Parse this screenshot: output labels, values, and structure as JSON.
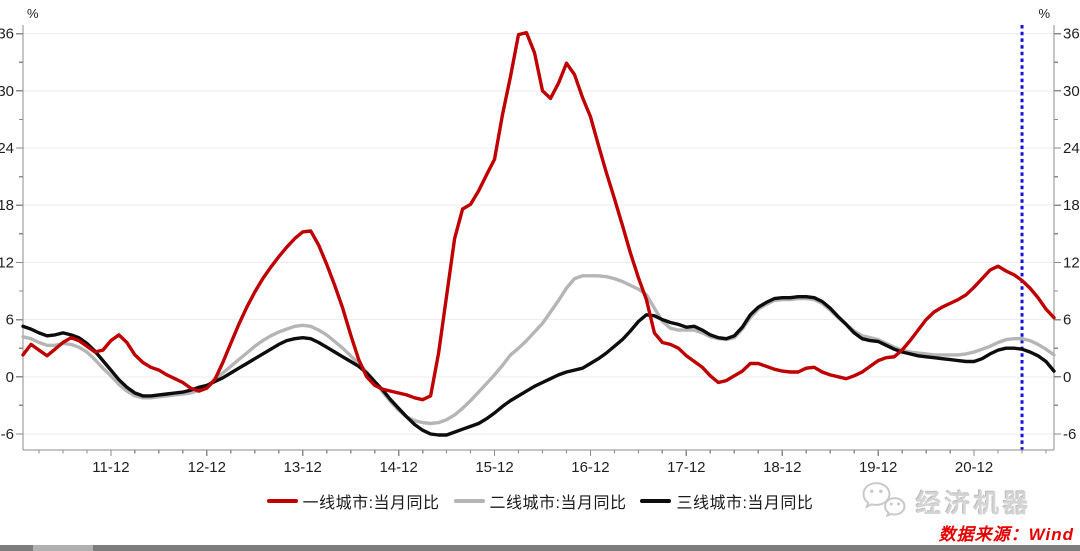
{
  "footer": {
    "brand": "经济机器",
    "source": "数据来源：Wind"
  },
  "scrollbar": {
    "present": true
  },
  "chart_data": {
    "type": "line",
    "title": "",
    "unit_label": "%",
    "grid": "horizontal-light",
    "legend_position": "bottom-center",
    "colors": {
      "axis": "#8c8c8c",
      "grid": "#ededed",
      "tick_text": "#1f1f1f",
      "reference": "#1414dc"
    },
    "y_axis": {
      "min": -6,
      "max": 36,
      "tick_step": 6,
      "minor_step": 3,
      "ticks": [
        36,
        30,
        24,
        18,
        12,
        6,
        0,
        -6
      ],
      "mirrored_right": true
    },
    "x_axis": {
      "start_month": "2011-01",
      "freq": "monthly",
      "n_points": 130,
      "tick_labels": [
        "11-12",
        "12-12",
        "13-12",
        "14-12",
        "15-12",
        "16-12",
        "17-12",
        "18-12",
        "19-12",
        "20-12"
      ],
      "tick_month_indices": [
        11,
        23,
        35,
        47,
        59,
        71,
        83,
        95,
        107,
        119
      ],
      "minor_tick_every_months": 3
    },
    "reference_line": {
      "style": "vertical-dotted",
      "month": "2021-06",
      "month_index": 125,
      "color": "#1414dc"
    },
    "series": [
      {
        "name": "一线城市:当月同比",
        "color": "#c00000",
        "width": 3.4,
        "values": [
          2.3,
          3.4,
          2.8,
          2.2,
          2.9,
          3.6,
          4.1,
          3.8,
          3.2,
          2.6,
          2.8,
          3.8,
          4.4,
          3.6,
          2.3,
          1.5,
          1.0,
          0.7,
          0.2,
          -0.2,
          -0.6,
          -1.2,
          -1.5,
          -1.2,
          -0.3,
          1.5,
          3.5,
          5.5,
          7.3,
          8.9,
          10.3,
          11.5,
          12.6,
          13.6,
          14.5,
          15.2,
          15.3,
          13.8,
          11.8,
          9.6,
          7.2,
          4.4,
          1.8,
          0.0,
          -0.9,
          -1.3,
          -1.5,
          -1.7,
          -1.9,
          -2.2,
          -2.4,
          -2.0,
          2.5,
          8.5,
          14.5,
          17.6,
          18.1,
          19.5,
          21.2,
          22.8,
          27.5,
          31.5,
          35.9,
          36.1,
          34.0,
          30.0,
          29.2,
          30.8,
          32.9,
          31.7,
          29.3,
          27.3,
          24.3,
          21.4,
          18.7,
          15.9,
          13.0,
          10.4,
          8.1,
          4.6,
          3.6,
          3.4,
          3.0,
          2.2,
          1.6,
          1.0,
          0.1,
          -0.6,
          -0.4,
          0.1,
          0.6,
          1.4,
          1.4,
          1.1,
          0.8,
          0.6,
          0.5,
          0.5,
          0.9,
          1.0,
          0.5,
          0.2,
          0.0,
          -0.2,
          0.1,
          0.5,
          1.1,
          1.7,
          2.0,
          2.1,
          2.8,
          3.8,
          4.9,
          6.0,
          6.8,
          7.3,
          7.7,
          8.1,
          8.6,
          9.4,
          10.3,
          11.2,
          11.6,
          11.1,
          10.7,
          10.1,
          9.3,
          8.3,
          7.1,
          6.2
        ]
      },
      {
        "name": "二线城市:当月同比",
        "color": "#b5b5b5",
        "width": 3.4,
        "values": [
          4.2,
          4.0,
          3.6,
          3.3,
          3.3,
          3.5,
          3.4,
          3.1,
          2.6,
          1.8,
          0.9,
          0.1,
          -0.8,
          -1.5,
          -2.0,
          -2.2,
          -2.2,
          -2.1,
          -2.0,
          -1.9,
          -1.8,
          -1.7,
          -1.4,
          -1.1,
          -0.2,
          0.4,
          1.1,
          1.8,
          2.5,
          3.2,
          3.8,
          4.3,
          4.7,
          5.0,
          5.3,
          5.4,
          5.3,
          4.9,
          4.4,
          3.7,
          3.0,
          2.2,
          1.4,
          0.5,
          -0.5,
          -1.6,
          -2.6,
          -3.5,
          -4.2,
          -4.6,
          -4.8,
          -4.9,
          -4.8,
          -4.5,
          -4.0,
          -3.3,
          -2.5,
          -1.6,
          -0.7,
          0.2,
          1.2,
          2.3,
          3.0,
          3.8,
          4.7,
          5.6,
          6.8,
          8.0,
          9.3,
          10.3,
          10.6,
          10.6,
          10.6,
          10.5,
          10.3,
          10.0,
          9.6,
          9.2,
          8.6,
          7.2,
          5.8,
          5.1,
          4.9,
          4.9,
          4.9,
          4.6,
          4.2,
          4.0,
          3.9,
          4.1,
          5.0,
          6.2,
          7.1,
          7.6,
          8.0,
          8.1,
          8.1,
          8.2,
          8.2,
          8.1,
          7.7,
          7.0,
          6.2,
          5.5,
          4.8,
          4.3,
          4.1,
          3.9,
          3.5,
          3.1,
          2.8,
          2.6,
          2.5,
          2.4,
          2.3,
          2.3,
          2.3,
          2.3,
          2.4,
          2.6,
          2.9,
          3.2,
          3.6,
          3.9,
          4.0,
          4.0,
          3.8,
          3.4,
          2.9,
          2.3
        ]
      },
      {
        "name": "三线城市:当月同比",
        "color": "#0d0d0d",
        "width": 3.4,
        "values": [
          5.3,
          5.0,
          4.6,
          4.3,
          4.4,
          4.6,
          4.4,
          4.1,
          3.5,
          2.7,
          1.7,
          0.7,
          -0.3,
          -1.1,
          -1.7,
          -2.0,
          -2.0,
          -1.9,
          -1.8,
          -1.7,
          -1.6,
          -1.4,
          -1.1,
          -0.9,
          -0.5,
          -0.1,
          0.4,
          0.9,
          1.4,
          1.9,
          2.4,
          2.9,
          3.4,
          3.8,
          4.0,
          4.1,
          4.0,
          3.6,
          3.1,
          2.6,
          2.1,
          1.6,
          1.1,
          0.4,
          -0.5,
          -1.4,
          -2.4,
          -3.3,
          -4.2,
          -5.0,
          -5.6,
          -6.0,
          -6.1,
          -6.1,
          -5.8,
          -5.5,
          -5.2,
          -4.9,
          -4.4,
          -3.8,
          -3.1,
          -2.5,
          -2.0,
          -1.5,
          -1.0,
          -0.6,
          -0.2,
          0.2,
          0.5,
          0.7,
          0.9,
          1.4,
          1.9,
          2.5,
          3.2,
          3.9,
          4.8,
          5.8,
          6.5,
          6.4,
          6.0,
          5.7,
          5.5,
          5.2,
          5.3,
          4.9,
          4.4,
          4.1,
          4.0,
          4.3,
          5.2,
          6.5,
          7.3,
          7.8,
          8.2,
          8.3,
          8.3,
          8.4,
          8.4,
          8.3,
          7.9,
          7.2,
          6.3,
          5.5,
          4.6,
          4.0,
          3.8,
          3.7,
          3.3,
          2.9,
          2.6,
          2.4,
          2.2,
          2.1,
          2.0,
          1.9,
          1.8,
          1.7,
          1.6,
          1.6,
          1.9,
          2.4,
          2.8,
          3.0,
          3.0,
          2.9,
          2.6,
          2.2,
          1.6,
          0.6
        ]
      }
    ]
  }
}
